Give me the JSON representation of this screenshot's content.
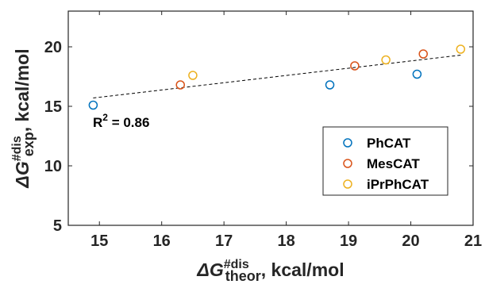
{
  "chart_data": {
    "type": "scatter",
    "xlabel": {
      "prefix": "ΔG",
      "sup": "#dis",
      "sub": "theor",
      "suffix": ", kcal/mol"
    },
    "ylabel": {
      "prefix": "ΔG",
      "sup": "#dis",
      "sub": "exp",
      "suffix": ", kcal/mol"
    },
    "xlim": [
      14.5,
      21
    ],
    "ylim": [
      5,
      23
    ],
    "x_ticks": [
      15,
      16,
      17,
      18,
      19,
      20,
      21
    ],
    "y_ticks": [
      5,
      10,
      15,
      20
    ],
    "grid": false,
    "legend_position": "bottom-right",
    "series": [
      {
        "name": "PhCAT",
        "color": "#0072BD",
        "points": [
          [
            14.9,
            15.1
          ],
          [
            18.7,
            16.8
          ],
          [
            20.1,
            17.7
          ]
        ]
      },
      {
        "name": "MesCAT",
        "color": "#D95319",
        "points": [
          [
            16.3,
            16.8
          ],
          [
            19.1,
            18.4
          ],
          [
            20.2,
            19.4
          ]
        ]
      },
      {
        "name": "iPrPhCAT",
        "color": "#EDB120",
        "points": [
          [
            16.5,
            17.6
          ],
          [
            19.6,
            18.9
          ],
          [
            20.8,
            19.8
          ]
        ]
      }
    ],
    "fit_line": {
      "x": [
        14.9,
        20.8
      ],
      "y": [
        15.7,
        19.3
      ],
      "style": "dashed"
    },
    "annotation": {
      "text": "R",
      "sup": "2",
      "rest": " = 0.86"
    }
  }
}
